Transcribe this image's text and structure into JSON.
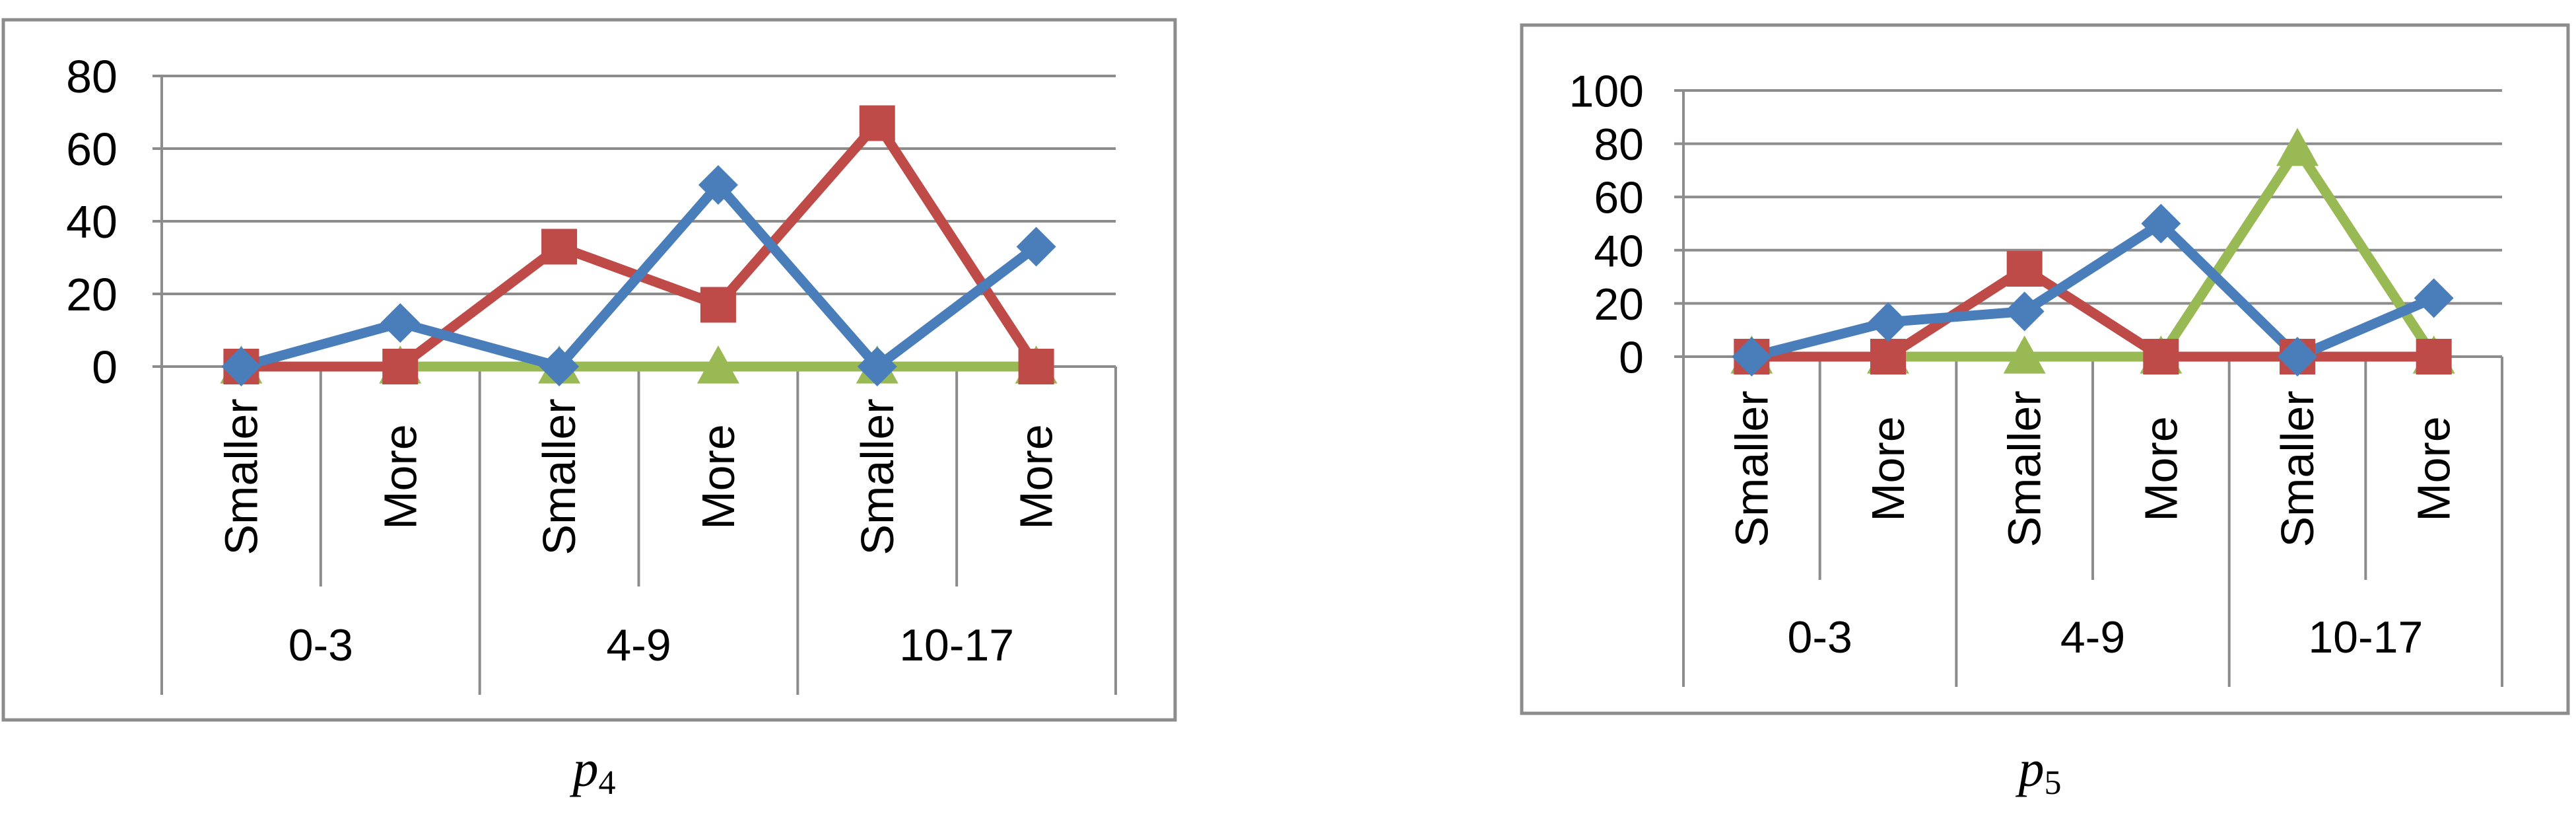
{
  "chart_data": [
    {
      "type": "line",
      "caption": "p4",
      "caption_main": "p",
      "caption_sub": "4",
      "categories": [
        "Smaller",
        "More",
        "Smaller",
        "More",
        "Smaller",
        "More"
      ],
      "groups": [
        {
          "label": "0-3",
          "span": 2
        },
        {
          "label": "4-9",
          "span": 2
        },
        {
          "label": "10-17",
          "span": 2
        }
      ],
      "ylim": [
        0,
        80
      ],
      "yticks": [
        0,
        20,
        40,
        60,
        80
      ],
      "grid": true,
      "series": [
        {
          "color": "#4a7ebb",
          "marker": "diamond",
          "values": [
            0,
            12,
            0,
            50,
            0,
            33
          ]
        },
        {
          "color": "#be4b48",
          "marker": "square",
          "values": [
            0,
            0,
            33,
            17,
            67,
            0
          ]
        },
        {
          "color": "#98b954",
          "marker": "triangle",
          "values": [
            0,
            0,
            0,
            0,
            0,
            0
          ]
        }
      ]
    },
    {
      "type": "line",
      "caption": "p5",
      "caption_main": "p",
      "caption_sub": "5",
      "categories": [
        "Smaller",
        "More",
        "Smaller",
        "More",
        "Smaller",
        "More"
      ],
      "groups": [
        {
          "label": "0-3",
          "span": 2
        },
        {
          "label": "4-9",
          "span": 2
        },
        {
          "label": "10-17",
          "span": 2
        }
      ],
      "ylim": [
        0,
        100
      ],
      "yticks": [
        0,
        20,
        40,
        60,
        80,
        100
      ],
      "grid": true,
      "series": [
        {
          "color": "#4a7ebb",
          "marker": "diamond",
          "values": [
            0,
            13,
            17,
            50,
            0,
            22
          ]
        },
        {
          "color": "#be4b48",
          "marker": "square",
          "values": [
            0,
            0,
            33,
            0,
            0,
            0
          ]
        },
        {
          "color": "#98b954",
          "marker": "triangle",
          "values": [
            0,
            0,
            0,
            0,
            78,
            0
          ]
        }
      ]
    }
  ]
}
